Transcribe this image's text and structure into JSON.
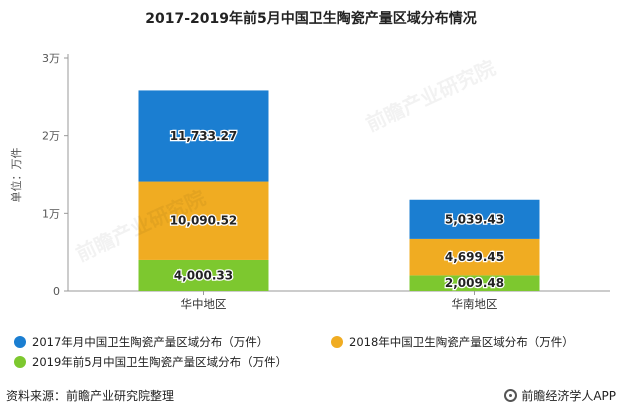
{
  "chart_data": {
    "type": "bar",
    "stacked": true,
    "title": "2017-2019年前5月中国卫生陶瓷产量区域分布情况",
    "ylabel": "单位：万件",
    "ylim": [
      0,
      30000
    ],
    "yticks": [
      {
        "value": 0,
        "label": "0"
      },
      {
        "value": 10000,
        "label": "1万"
      },
      {
        "value": 20000,
        "label": "2万"
      },
      {
        "value": 30000,
        "label": "3万"
      }
    ],
    "categories": [
      "华中地区",
      "华南地区"
    ],
    "series": [
      {
        "name": "2019年前5月中国卫生陶瓷产量区域分布（万件）",
        "color": "#7dc82f",
        "values": [
          4000.33,
          2009.48
        ],
        "labels": [
          "4,000.33",
          "2,009.48"
        ]
      },
      {
        "name": "2018年中国卫生陶瓷产量区域分布（万件）",
        "color": "#f0ac22",
        "values": [
          10090.52,
          4699.45
        ],
        "labels": [
          "10,090.52",
          "4,699.45"
        ]
      },
      {
        "name": "2017年月中国卫生陶瓷产量区域分布（万件）",
        "color": "#1b7ed1",
        "values": [
          11733.27,
          5039.43
        ],
        "labels": [
          "11,733.27",
          "5,039.43"
        ]
      }
    ],
    "legend_position": "bottom"
  },
  "legend": [
    {
      "label": "2017年月中国卫生陶瓷产量区域分布（万件）",
      "color": "#1b7ed1"
    },
    {
      "label": "2018年中国卫生陶瓷产量区域分布（万件）",
      "color": "#f0ac22"
    },
    {
      "label": "2019年前5月中国卫生陶瓷产量区域分布（万件）",
      "color": "#7dc82f"
    }
  ],
  "footer": {
    "source": "资料来源：前瞻产业研究院整理",
    "brand": "前瞻经济学人APP"
  },
  "watermark": "前瞻产业研究院"
}
